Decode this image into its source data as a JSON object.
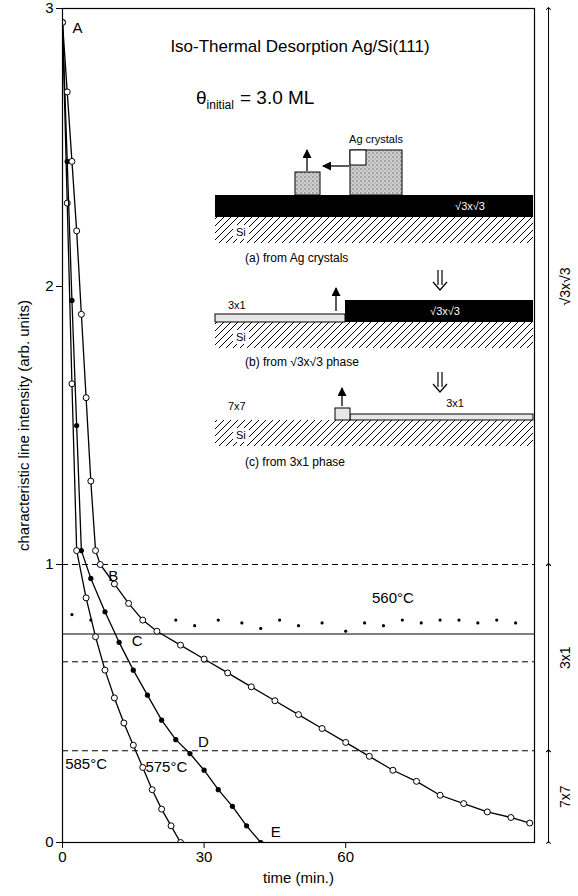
{
  "chart_data": {
    "type": "line",
    "title": "Iso-Thermal Desorption Ag/Si(111)",
    "subtitle": {
      "symbol": "θ",
      "subscript": "initial",
      "text": "= 3.0 ML"
    },
    "x_label": "time (min.)",
    "y_label": "characteristic line intensity (arb. units)",
    "xlim": [
      0,
      100
    ],
    "xticks": [
      0,
      30,
      60
    ],
    "ylim": [
      0,
      3
    ],
    "yticks": [
      0,
      1,
      2,
      3
    ],
    "grid": false,
    "series": [
      {
        "name": "585°C",
        "color": "#000000",
        "marker": "open circle",
        "line_style": "solid",
        "x": [
          0,
          1,
          2,
          3,
          5,
          7,
          9,
          11,
          13,
          15,
          17,
          19,
          21,
          23,
          25
        ],
        "values": [
          2.95,
          2.3,
          1.65,
          1.05,
          0.88,
          0.74,
          0.62,
          0.52,
          0.43,
          0.35,
          0.27,
          0.19,
          0.12,
          0.06,
          0.0
        ]
      },
      {
        "name": "575°C",
        "color": "#000000",
        "marker": "dot",
        "line_style": "solid",
        "x": [
          0,
          1,
          2,
          3,
          4,
          6,
          9,
          12,
          15,
          18,
          21,
          24,
          27,
          30,
          33,
          36,
          39,
          42
        ],
        "values": [
          2.95,
          2.45,
          1.95,
          1.5,
          1.05,
          0.95,
          0.83,
          0.72,
          0.62,
          0.53,
          0.44,
          0.37,
          0.32,
          0.26,
          0.19,
          0.13,
          0.06,
          0.0
        ]
      },
      {
        "name": "560°C",
        "color": "#000000",
        "marker": "open circle",
        "line_style": "solid",
        "x": [
          0,
          1,
          2,
          3,
          4,
          5,
          6,
          7,
          8,
          11,
          14,
          17,
          20,
          25,
          30,
          35,
          40,
          45,
          50,
          55,
          60,
          65,
          70,
          75,
          80,
          85,
          90,
          95,
          99
        ],
        "values": [
          2.95,
          2.7,
          2.45,
          2.2,
          1.9,
          1.6,
          1.3,
          1.05,
          1.0,
          0.93,
          0.86,
          0.8,
          0.76,
          0.71,
          0.66,
          0.61,
          0.56,
          0.51,
          0.46,
          0.41,
          0.36,
          0.31,
          0.26,
          0.22,
          0.17,
          0.14,
          0.11,
          0.09,
          0.07
        ]
      },
      {
        "type": "scatter",
        "color": "#000000",
        "marker": "dot",
        "x": [
          2,
          6,
          24,
          28,
          33,
          38,
          42,
          46,
          50,
          55,
          60,
          64,
          68,
          72,
          76,
          80,
          84,
          88,
          92,
          96
        ],
        "values": [
          0.82,
          0.8,
          0.8,
          0.78,
          0.8,
          0.79,
          0.77,
          0.8,
          0.78,
          0.79,
          0.76,
          0.79,
          0.78,
          0.8,
          0.79,
          0.8,
          0.8,
          0.79,
          0.8,
          0.79
        ]
      }
    ],
    "reference_lines": [
      {
        "value": 1.0,
        "line_style": "dashed"
      },
      {
        "value": 0.75,
        "line_style": "solid"
      },
      {
        "value": 0.65,
        "line_style": "dashed"
      },
      {
        "value": 0.33,
        "line_style": "dashed"
      }
    ],
    "phases": [
      {
        "label": "√3x√3",
        "from": 1.0,
        "to": 3.0
      },
      {
        "label": "3x1",
        "from": 0.33,
        "to": 1.0
      },
      {
        "label": "7x7",
        "from": 0,
        "to": 0.33
      }
    ],
    "point_labels": [
      {
        "text": "A",
        "x": 0,
        "y": 2.95
      },
      {
        "text": "B",
        "x": 8,
        "y": 1.0
      },
      {
        "text": "C",
        "x": 13,
        "y": 0.69
      },
      {
        "text": "D",
        "x": 27,
        "y": 0.32
      },
      {
        "text": "E",
        "x": 42,
        "y": 0
      }
    ],
    "inset": {
      "panels": [
        {
          "caption": "(a) from Ag crystals",
          "crystals": "Ag crystals",
          "layer": "√3x√3",
          "substrate": "Si"
        },
        {
          "caption": "(b) from √3x√3 phase",
          "left_phase": "3x1",
          "right_phase": "√3x√3",
          "substrate": "Si"
        },
        {
          "caption": "(c) from 3x1 phase",
          "left_phase": "7x7",
          "right_phase": "3x1",
          "substrate": "Si"
        }
      ]
    }
  }
}
